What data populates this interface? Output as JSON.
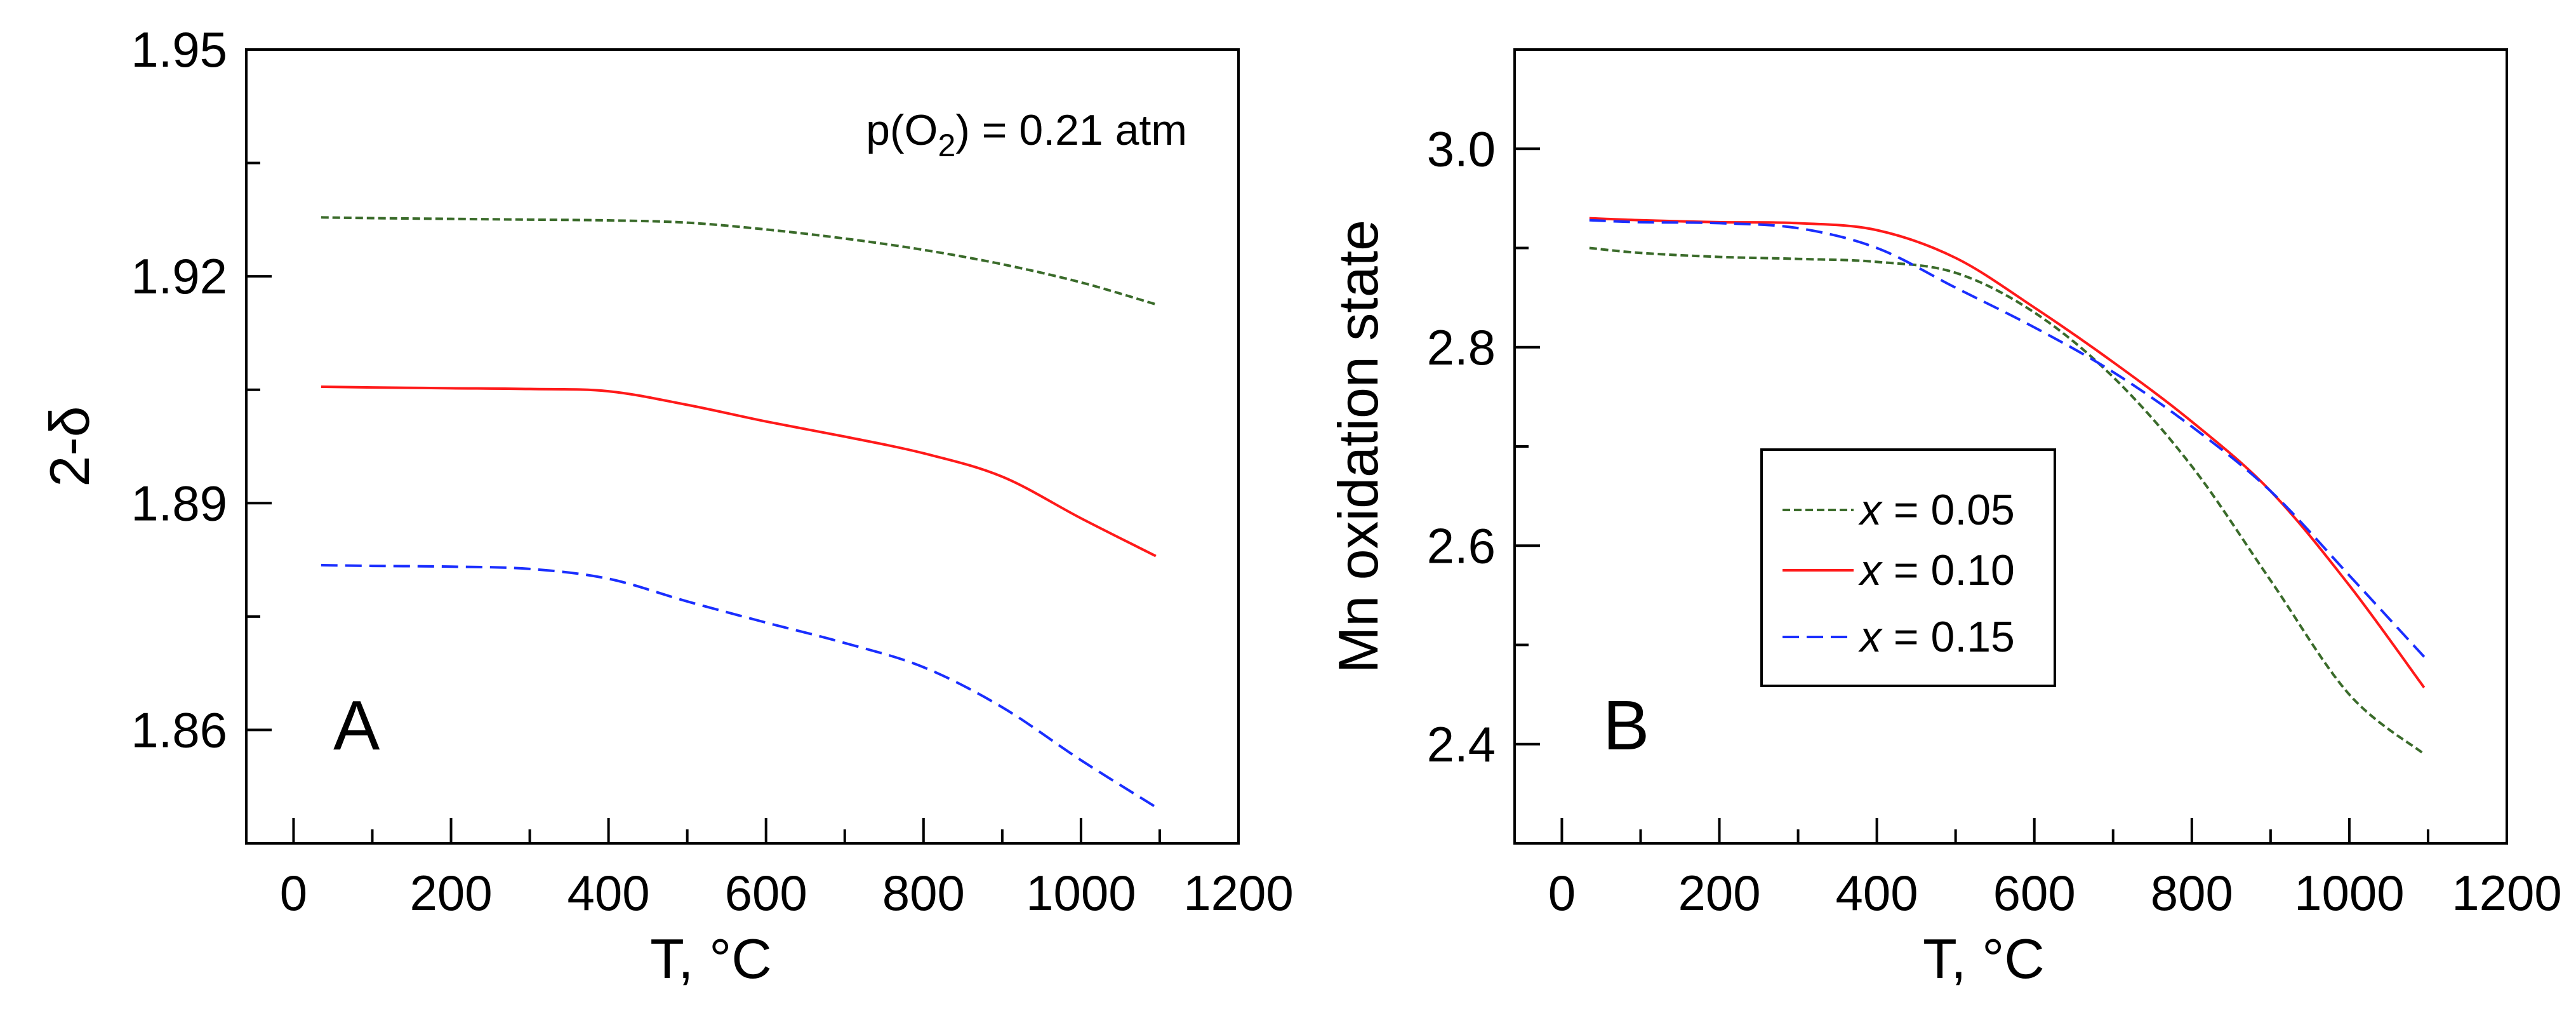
{
  "chart_data": [
    {
      "panel": "A",
      "type": "line",
      "title": "",
      "annotation": {
        "prefix": "p(O",
        "subscript": "2",
        "suffix": ") = 0.21 atm"
      },
      "xlabel": "T, °C",
      "ylabel": "2-δ",
      "xlim": [
        -60,
        1200
      ],
      "ylim": [
        1.845,
        1.95
      ],
      "xticks": [
        0,
        200,
        400,
        600,
        800,
        1000,
        1200
      ],
      "xtick_labels": [
        "0",
        "200",
        "400",
        "600",
        "800",
        "1000",
        "1200"
      ],
      "yticks": [
        1.86,
        1.89,
        1.92,
        1.95
      ],
      "ytick_labels": [
        "1.86",
        "1.89",
        "1.92",
        "1.95"
      ],
      "yminor_ticks": [
        1.845,
        1.875,
        1.905,
        1.935
      ],
      "series": [
        {
          "name": "x = 0.05",
          "color": "#3a6b2a",
          "dash": "short",
          "x": [
            35,
            100,
            200,
            300,
            400,
            500,
            600,
            700,
            800,
            900,
            1000,
            1095
          ],
          "y": [
            1.9278,
            1.9277,
            1.9276,
            1.9275,
            1.9274,
            1.9271,
            1.9262,
            1.925,
            1.9235,
            1.9216,
            1.9192,
            1.9163
          ]
        },
        {
          "name": "x = 0.10",
          "color": "#ff1a1a",
          "dash": "solid",
          "x": [
            35,
            100,
            200,
            300,
            400,
            500,
            600,
            700,
            800,
            900,
            1000,
            1095
          ],
          "y": [
            1.9054,
            1.9053,
            1.9052,
            1.9051,
            1.9048,
            1.903,
            1.9008,
            1.8988,
            1.8966,
            1.8935,
            1.888,
            1.883
          ]
        },
        {
          "name": "x = 0.15",
          "color": "#1a2eff",
          "dash": "long",
          "x": [
            35,
            100,
            200,
            300,
            400,
            500,
            600,
            700,
            800,
            900,
            1000,
            1095
          ],
          "y": [
            1.8818,
            1.8817,
            1.8816,
            1.8813,
            1.88,
            1.877,
            1.8742,
            1.8715,
            1.8683,
            1.863,
            1.856,
            1.8498
          ]
        }
      ]
    },
    {
      "panel": "B",
      "type": "line",
      "title": "",
      "xlabel": "T, °C",
      "ylabel": "Mn oxidation state",
      "xlim": [
        -60,
        1200
      ],
      "ylim": [
        2.3,
        3.1
      ],
      "xticks": [
        0,
        200,
        400,
        600,
        800,
        1000,
        1200
      ],
      "xtick_labels": [
        "0",
        "200",
        "400",
        "600",
        "800",
        "1000",
        "1200"
      ],
      "yticks": [
        2.4,
        2.6,
        2.8,
        3.0
      ],
      "ytick_labels": [
        "2.4",
        "2.6",
        "2.8",
        "3.0"
      ],
      "yminor_ticks": [
        2.5,
        2.7,
        2.9
      ],
      "legend": {
        "placement": "center",
        "items": [
          {
            "prefix": "x",
            "value": " = 0.05",
            "color": "#3a6b2a",
            "dash": "short"
          },
          {
            "prefix": "x",
            "value": " = 0.10",
            "color": "#ff1a1a",
            "dash": "solid"
          },
          {
            "prefix": "x",
            "value": " = 0.15",
            "color": "#1a2eff",
            "dash": "long"
          }
        ]
      },
      "series": [
        {
          "name": "x = 0.05",
          "color": "#3a6b2a",
          "dash": "short",
          "x": [
            35,
            100,
            200,
            300,
            400,
            500,
            600,
            700,
            800,
            900,
            1000,
            1095
          ],
          "y": [
            2.9,
            2.895,
            2.891,
            2.889,
            2.886,
            2.875,
            2.835,
            2.77,
            2.68,
            2.565,
            2.45,
            2.39
          ]
        },
        {
          "name": "x = 0.10",
          "color": "#ff1a1a",
          "dash": "solid",
          "x": [
            35,
            100,
            200,
            300,
            400,
            500,
            600,
            700,
            800,
            900,
            1000,
            1095
          ],
          "y": [
            2.93,
            2.928,
            2.926,
            2.925,
            2.918,
            2.89,
            2.84,
            2.785,
            2.725,
            2.655,
            2.56,
            2.457
          ]
        },
        {
          "name": "x = 0.15",
          "color": "#1a2eff",
          "dash": "long",
          "x": [
            35,
            100,
            200,
            300,
            400,
            500,
            600,
            700,
            800,
            900,
            1000,
            1095
          ],
          "y": [
            2.928,
            2.926,
            2.925,
            2.92,
            2.9,
            2.86,
            2.82,
            2.775,
            2.72,
            2.655,
            2.57,
            2.488
          ]
        }
      ]
    }
  ]
}
